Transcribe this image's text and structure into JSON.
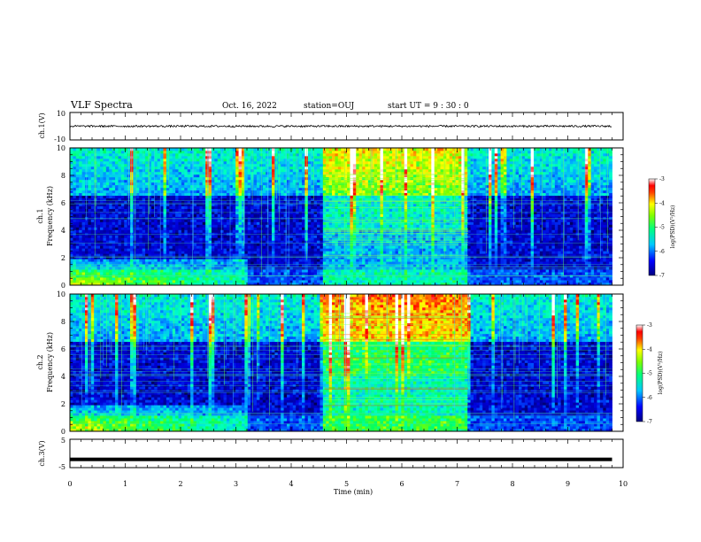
{
  "header": {
    "title": "VLF Spectra",
    "date": "Oct. 16, 2022",
    "station": "station=OUJ",
    "start": "start UT = 9 : 30 : 0"
  },
  "chart_data": [
    {
      "type": "line",
      "name": "ch1-waveform",
      "ylabel": "ch.1(V)",
      "ylim": [
        -10,
        10
      ],
      "yticks": [
        "10",
        "-10"
      ],
      "xlim": [
        0,
        10
      ],
      "baseline": 0,
      "noise_amplitude": 0.7
    },
    {
      "type": "heatmap",
      "name": "ch1-spectrogram",
      "ylabel_top": "ch.1",
      "ylabel": "Frequency (kHz)",
      "xlim": [
        0,
        10
      ],
      "ylim": [
        0,
        10
      ],
      "yticks": [
        "0",
        "2",
        "4",
        "6",
        "8",
        "10"
      ],
      "data_end_min": 9.8,
      "event_window_min": [
        4.6,
        7.2
      ],
      "colorbar": {
        "label": "log(PSD)(V²/Hz)",
        "ticks": [
          "-3",
          "-4",
          "-5",
          "-6",
          "-7"
        ],
        "range": [
          -7,
          -3
        ]
      }
    },
    {
      "type": "heatmap",
      "name": "ch2-spectrogram",
      "ylabel_top": "ch.2",
      "ylabel": "Frequency (kHz)",
      "xlim": [
        0,
        10
      ],
      "ylim": [
        0,
        10
      ],
      "yticks": [
        "0",
        "2",
        "4",
        "6",
        "8",
        "10"
      ],
      "data_end_min": 9.8,
      "event_window_min": [
        4.6,
        7.2
      ],
      "colorbar": {
        "label": "log(PSD)(V²/Hz)",
        "ticks": [
          "-3",
          "-4",
          "-5",
          "-6",
          "-7"
        ],
        "range": [
          -7,
          -3
        ]
      }
    },
    {
      "type": "line",
      "name": "ch3-waveform",
      "ylabel": "ch.3(V)",
      "ylim": [
        -5,
        5
      ],
      "yticks": [
        "5",
        "-5"
      ],
      "xlim": [
        0,
        10
      ],
      "baseline": -2.1
    }
  ],
  "xaxis": {
    "label": "Time (min)",
    "ticks": [
      "0",
      "1",
      "2",
      "3",
      "4",
      "5",
      "6",
      "7",
      "8",
      "9",
      "10"
    ]
  },
  "colors": {
    "colormap": [
      "#000000",
      "#0000c8",
      "#0050ff",
      "#00c8ff",
      "#00ff80",
      "#80ff00",
      "#ffff00",
      "#ff8000",
      "#ff0000",
      "#ffffff"
    ]
  }
}
